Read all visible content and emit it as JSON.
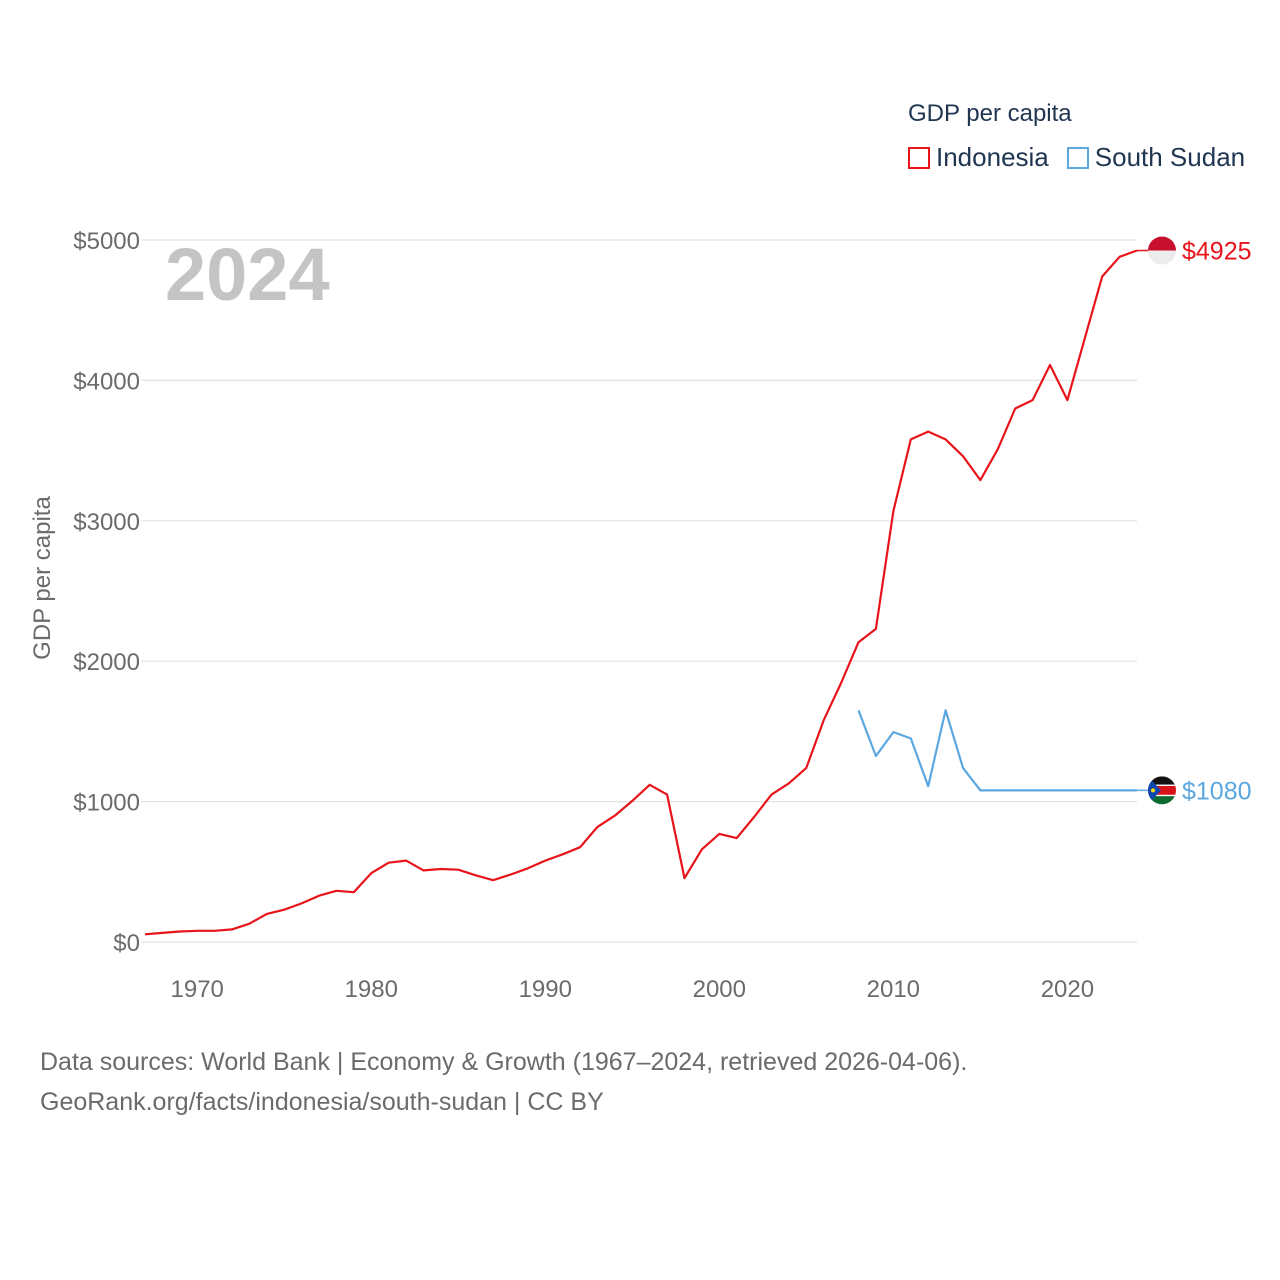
{
  "legend": {
    "title": "GDP per capita",
    "items": [
      {
        "label": "Indonesia",
        "color": "#e8141b"
      },
      {
        "label": "South Sudan",
        "color": "#5ba7e0"
      }
    ]
  },
  "year_label": "2024",
  "source": {
    "line1": "Data sources: World Bank | Economy & Growth (1967–2024, retrieved 2026-04-06).",
    "line2": "GeoRank.org/facts/indonesia/south-sudan | CC BY"
  },
  "chart_data": {
    "type": "line",
    "title": "GDP per capita",
    "xlabel": "",
    "ylabel": "GDP per capita",
    "xlim": [
      1967,
      2024
    ],
    "ylim": [
      0,
      5000
    ],
    "x_ticks": [
      1970,
      1980,
      1990,
      2000,
      2010,
      2020
    ],
    "y_ticks": [
      0,
      1000,
      2000,
      3000,
      4000,
      5000
    ],
    "y_tick_labels": [
      "$0",
      "$1000",
      "$2000",
      "$3000",
      "$4000",
      "$5000"
    ],
    "series": [
      {
        "name": "Indonesia",
        "color": "#e8141b",
        "end_label": "$4925",
        "icon": "indonesia-flag-icon",
        "x": [
          1967,
          1968,
          1969,
          1970,
          1971,
          1972,
          1973,
          1974,
          1975,
          1976,
          1977,
          1978,
          1979,
          1980,
          1981,
          1982,
          1983,
          1984,
          1985,
          1986,
          1987,
          1988,
          1989,
          1990,
          1991,
          1992,
          1993,
          1994,
          1995,
          1996,
          1997,
          1998,
          1999,
          2000,
          2001,
          2002,
          2003,
          2004,
          2005,
          2006,
          2007,
          2008,
          2009,
          2010,
          2011,
          2012,
          2013,
          2014,
          2015,
          2016,
          2017,
          2018,
          2019,
          2020,
          2021,
          2022,
          2023,
          2024
        ],
        "values": [
          55,
          65,
          75,
          80,
          80,
          90,
          130,
          200,
          230,
          275,
          330,
          365,
          355,
          490,
          565,
          580,
          510,
          520,
          515,
          475,
          440,
          480,
          525,
          580,
          625,
          675,
          820,
          900,
          1005,
          1120,
          1050,
          455,
          660,
          770,
          740,
          890,
          1050,
          1130,
          1240,
          1580,
          1845,
          2135,
          2230,
          3070,
          3580,
          3635,
          3580,
          3460,
          3290,
          3510,
          3800,
          3860,
          4110,
          3860,
          4300,
          4740,
          4880,
          4925
        ]
      },
      {
        "name": "South Sudan",
        "color": "#5ba7e0",
        "end_label": "$1080",
        "icon": "south-sudan-flag-icon",
        "x": [
          2008,
          2009,
          2010,
          2011,
          2012,
          2013,
          2014,
          2015,
          2016,
          2017,
          2018,
          2019,
          2020,
          2021,
          2022,
          2023,
          2024
        ],
        "values": [
          1650,
          1325,
          1495,
          1450,
          1110,
          1650,
          1240,
          1080,
          1080,
          1080,
          1080,
          1080,
          1080,
          1080,
          1080,
          1080,
          1080
        ]
      }
    ]
  }
}
